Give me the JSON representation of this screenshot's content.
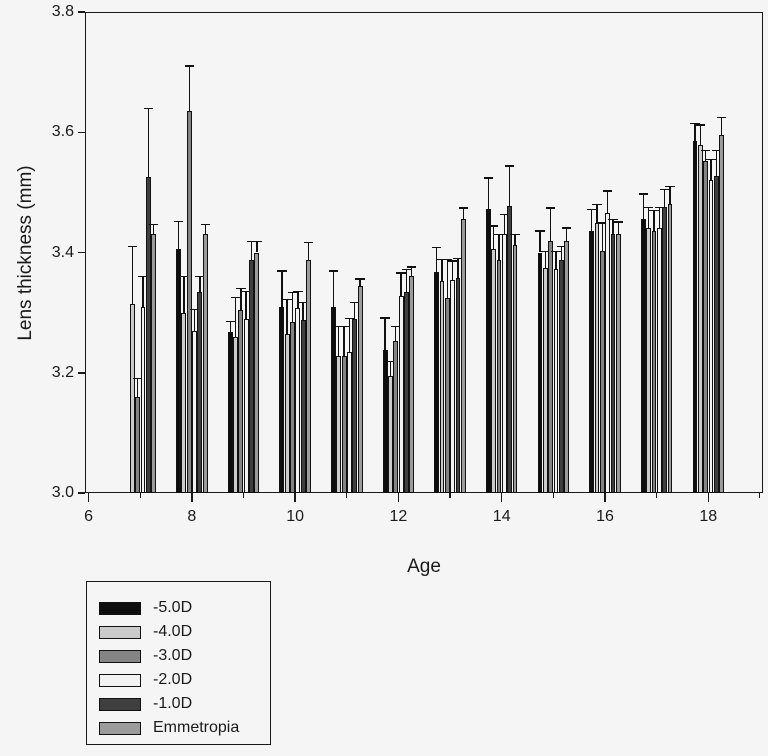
{
  "figure": {
    "background_color": "#f5f5f5",
    "text_color": "#1a1a1a"
  },
  "axes": {
    "ylabel": "Lens thickness (mm)",
    "xlabel": "Age"
  },
  "chart_data": {
    "type": "bar",
    "title": "",
    "xlabel": "Age",
    "ylabel": "Lens thickness (mm)",
    "ylim": [
      3.0,
      3.8
    ],
    "xlim": [
      5.93,
      19.06
    ],
    "y_ticks": [
      3.0,
      3.2,
      3.4,
      3.6,
      3.8
    ],
    "y_tick_labels": [
      "3.0",
      "3.2",
      "3.4",
      "3.6",
      "3.8"
    ],
    "x_ticks_major": [
      6,
      8,
      10,
      12,
      14,
      16,
      18
    ],
    "x_tick_labels": [
      "6",
      "8",
      "10",
      "12",
      "14",
      "16",
      "18"
    ],
    "x_ticks_minor": [
      7,
      9,
      11,
      13,
      15,
      17,
      19
    ],
    "grid": false,
    "error_bars": "upper only, with caps",
    "legend_position": "bottom-left outside plot",
    "series": [
      {
        "name": "-5.0D",
        "color": "#0d0d0d"
      },
      {
        "name": "-4.0D",
        "color": "#cbcbcb"
      },
      {
        "name": "-3.0D",
        "color": "#848484"
      },
      {
        "name": "-2.0D",
        "color": "#f2f2f2"
      },
      {
        "name": "-1.0D",
        "color": "#3f3f3f"
      },
      {
        "name": "Emmetropia",
        "color": "#9b9b9b"
      }
    ],
    "groups": [
      {
        "age": 7,
        "values": [
          null,
          3.315,
          3.16,
          3.31,
          3.525,
          3.43
        ],
        "errors_top": [
          null,
          3.41,
          3.19,
          3.36,
          3.64,
          3.447
        ]
      },
      {
        "age": 8,
        "values": [
          3.405,
          3.3,
          3.635,
          3.27,
          3.335,
          3.43
        ],
        "errors_top": [
          3.452,
          3.36,
          3.71,
          3.305,
          3.36,
          3.447
        ]
      },
      {
        "age": 9,
        "values": [
          3.267,
          3.26,
          3.305,
          3.29,
          3.388,
          3.4
        ],
        "errors_top": [
          3.285,
          3.325,
          3.34,
          3.335,
          3.418,
          3.418
        ]
      },
      {
        "age": 10,
        "values": [
          3.31,
          3.265,
          3.285,
          3.308,
          3.288,
          3.388
        ],
        "errors_top": [
          3.369,
          3.322,
          3.333,
          3.335,
          3.317,
          3.417
        ]
      },
      {
        "age": 11,
        "values": [
          3.31,
          3.228,
          3.228,
          3.235,
          3.29,
          3.344
        ],
        "errors_top": [
          3.369,
          3.277,
          3.277,
          3.29,
          3.317,
          3.356
        ]
      },
      {
        "age": 12,
        "values": [
          3.238,
          3.195,
          3.252,
          3.327,
          3.335,
          3.361
        ],
        "errors_top": [
          3.291,
          3.219,
          3.277,
          3.366,
          3.372,
          3.376
        ]
      },
      {
        "age": 13,
        "values": [
          3.367,
          3.352,
          3.324,
          3.355,
          3.358,
          3.455
        ],
        "errors_top": [
          3.408,
          3.388,
          3.388,
          3.386,
          3.39,
          3.474
        ]
      },
      {
        "age": 14,
        "values": [
          3.472,
          3.405,
          3.388,
          3.43,
          3.477,
          3.413
        ],
        "errors_top": [
          3.524,
          3.444,
          3.43,
          3.463,
          3.544,
          3.43
        ]
      },
      {
        "age": 15,
        "values": [
          3.4,
          3.374,
          3.419,
          3.372,
          3.388,
          3.419
        ],
        "errors_top": [
          3.436,
          3.402,
          3.474,
          3.402,
          3.41,
          3.441
        ]
      },
      {
        "age": 16,
        "values": [
          3.436,
          3.449,
          3.402,
          3.466,
          3.43,
          3.43
        ],
        "errors_top": [
          3.472,
          3.48,
          3.449,
          3.502,
          3.455,
          3.451
        ]
      },
      {
        "age": 17,
        "values": [
          3.455,
          3.44,
          3.435,
          3.44,
          3.475,
          3.48
        ],
        "errors_top": [
          3.497,
          3.475,
          3.47,
          3.475,
          3.505,
          3.51
        ]
      },
      {
        "age": 18,
        "values": [
          3.585,
          3.578,
          3.552,
          3.52,
          3.528,
          3.595
        ],
        "errors_top": [
          3.615,
          3.612,
          3.57,
          3.555,
          3.57,
          3.625
        ]
      }
    ]
  }
}
